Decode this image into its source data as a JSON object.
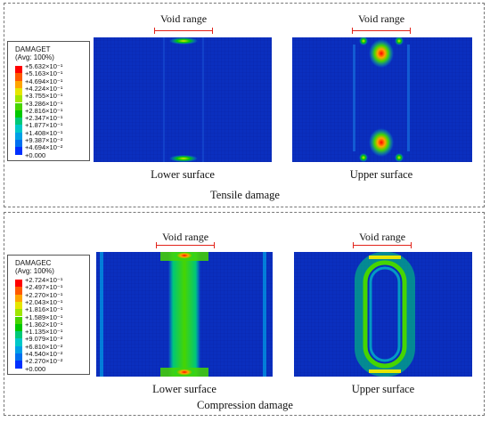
{
  "tensile": {
    "legend_title": "DAMAGET",
    "legend_subtitle": "(Avg: 100%)",
    "legend_values": [
      "+5.632×10⁻¹",
      "+5.163×10⁻¹",
      "+4.694×10⁻¹",
      "+4.224×10⁻¹",
      "+3.755×10⁻¹",
      "+3.286×10⁻¹",
      "+2.816×10⁻¹",
      "+2.347×10⁻¹",
      "+1.877×10⁻¹",
      "+1.408×10⁻¹",
      "+9.387×10⁻²",
      "+4.694×10⁻²",
      "+0.000"
    ],
    "void_label": "Void range",
    "lower_caption": "Lower surface",
    "upper_caption": "Upper surface",
    "panel_caption": "Tensile damage"
  },
  "compression": {
    "legend_title": "DAMAGEC",
    "legend_subtitle": "(Avg: 100%)",
    "legend_values": [
      "+2.724×10⁻¹",
      "+2.497×10⁻¹",
      "+2.270×10⁻¹",
      "+2.043×10⁻¹",
      "+1.816×10⁻¹",
      "+1.589×10⁻¹",
      "+1.362×10⁻¹",
      "+1.135×10⁻¹",
      "+9.079×10⁻²",
      "+6.810×10⁻²",
      "+4.540×10⁻²",
      "+2.270×10⁻²",
      "+0.000"
    ],
    "void_label": "Void range",
    "lower_caption": "Lower surface",
    "upper_caption": "Upper surface",
    "panel_caption": "Compression damage"
  },
  "colors": {
    "scale": [
      "#ff0000",
      "#ff5a00",
      "#ffa500",
      "#e6e600",
      "#a0e600",
      "#46d500",
      "#00c800",
      "#00c878",
      "#00c8c8",
      "#00a0e6",
      "#0070f0",
      "#0030ff",
      "#0000dc"
    ],
    "background_mesh": "#0a2fbf",
    "void_marker": "#e2231a"
  }
}
